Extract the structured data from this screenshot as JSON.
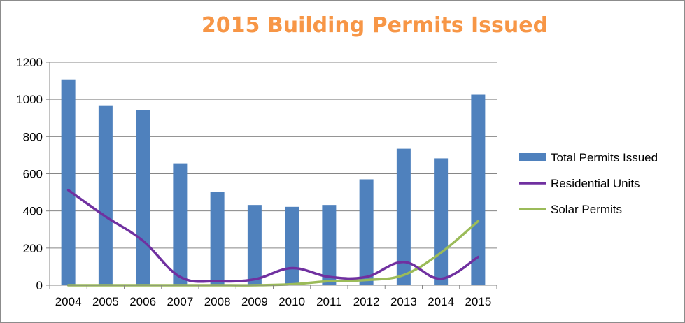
{
  "chart_data": {
    "type": "bar",
    "title": "2015 Building Permits Issued",
    "xlabel": "",
    "ylabel": "",
    "ylim": [
      0,
      1200
    ],
    "yticks": [
      0,
      200,
      400,
      600,
      800,
      1000,
      1200
    ],
    "grid": true,
    "legend_position": "right",
    "categories": [
      "2004",
      "2005",
      "2006",
      "2007",
      "2008",
      "2009",
      "2010",
      "2011",
      "2012",
      "2013",
      "2014",
      "2015"
    ],
    "series": [
      {
        "name": "Total Permits Issued",
        "type": "bar",
        "color": "#4f81bd",
        "values": [
          1107,
          968,
          942,
          656,
          502,
          432,
          422,
          432,
          570,
          735,
          683,
          1025
        ]
      },
      {
        "name": "Residential Units",
        "type": "line",
        "color": "#7030a0",
        "values": [
          512,
          370,
          240,
          45,
          22,
          32,
          92,
          45,
          45,
          125,
          35,
          152
        ]
      },
      {
        "name": "Solar Permits",
        "type": "line",
        "color": "#9bbb59",
        "values": [
          0,
          0,
          0,
          0,
          0,
          0,
          5,
          22,
          28,
          55,
          175,
          345
        ]
      }
    ]
  }
}
